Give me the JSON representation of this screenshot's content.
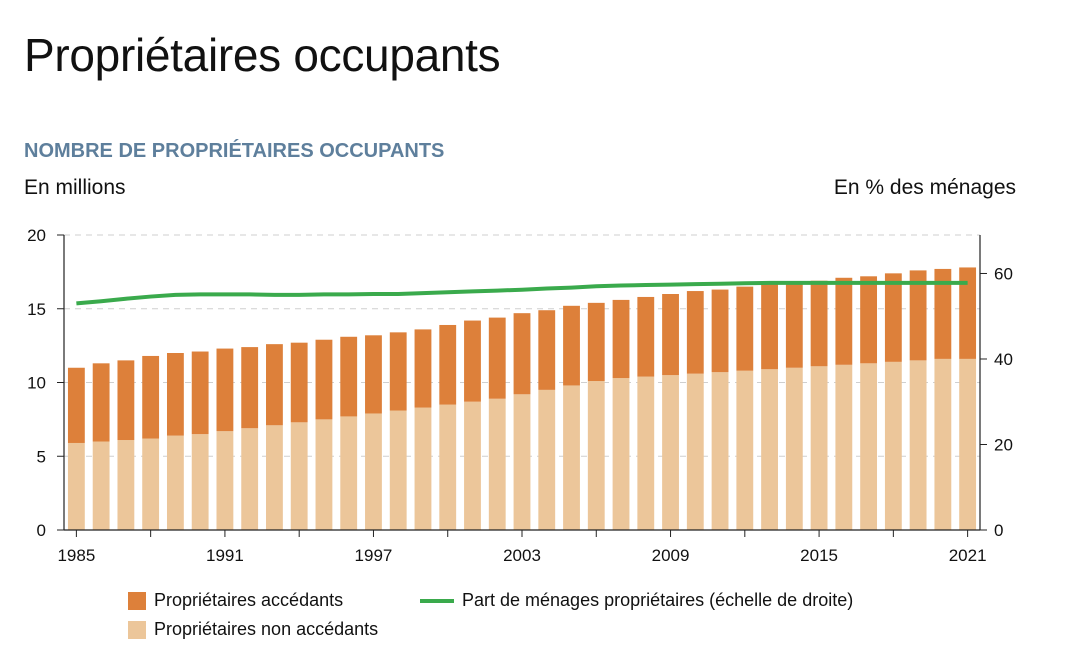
{
  "title": "Propriétaires occupants",
  "subtitle": "NOMBRE DE PROPRIÉTAIRES OCCUPANTS",
  "unit_left": "En millions",
  "unit_right": "En % des ménages",
  "legend": {
    "accedants": "Propriétaires accédants",
    "non_accedants": "Propriétaires non accédants",
    "part": "Part de ménages propriétaires (échelle de droite)"
  },
  "colors": {
    "accedants": "#dd803a",
    "non_accedants": "#ecc69a",
    "part": "#3aaa4c",
    "subtitle": "#5e7f9c"
  },
  "chart_data": {
    "type": "bar",
    "stacked": true,
    "x": [
      1985,
      1986,
      1987,
      1988,
      1989,
      1990,
      1991,
      1992,
      1993,
      1994,
      1995,
      1996,
      1997,
      1998,
      1999,
      2000,
      2001,
      2002,
      2003,
      2004,
      2005,
      2006,
      2007,
      2008,
      2009,
      2010,
      2011,
      2012,
      2013,
      2014,
      2015,
      2016,
      2017,
      2018,
      2019,
      2020,
      2021
    ],
    "x_tick_labels": [
      "1985",
      "1991",
      "1997",
      "2003",
      "2009",
      "2015",
      "2021"
    ],
    "y_left_ticks": [
      0,
      5,
      10,
      15,
      20
    ],
    "y_left_lim": [
      0,
      20
    ],
    "y_right_ticks": [
      0,
      20,
      40,
      60
    ],
    "y_right_lim": [
      0,
      69
    ],
    "series": [
      {
        "name": "Propriétaires non accédants",
        "axis": "left",
        "values": [
          5.9,
          6.0,
          6.1,
          6.2,
          6.4,
          6.5,
          6.7,
          6.9,
          7.1,
          7.3,
          7.5,
          7.7,
          7.9,
          8.1,
          8.3,
          8.5,
          8.7,
          8.9,
          9.2,
          9.5,
          9.8,
          10.1,
          10.3,
          10.4,
          10.5,
          10.6,
          10.7,
          10.8,
          10.9,
          11.0,
          11.1,
          11.2,
          11.3,
          11.4,
          11.5,
          11.6,
          11.6
        ]
      },
      {
        "name": "Propriétaires accédants",
        "axis": "left",
        "values": [
          5.1,
          5.3,
          5.4,
          5.6,
          5.6,
          5.6,
          5.6,
          5.5,
          5.5,
          5.4,
          5.4,
          5.4,
          5.3,
          5.3,
          5.3,
          5.4,
          5.5,
          5.5,
          5.5,
          5.4,
          5.4,
          5.3,
          5.3,
          5.4,
          5.5,
          5.6,
          5.6,
          5.7,
          5.8,
          5.8,
          5.8,
          5.9,
          5.9,
          6.0,
          6.1,
          6.1,
          6.2
        ]
      },
      {
        "name": "Part de ménages propriétaires (échelle de droite)",
        "axis": "right",
        "type": "line",
        "values": [
          53.0,
          53.5,
          54.1,
          54.6,
          55.0,
          55.1,
          55.1,
          55.1,
          55.0,
          55.0,
          55.1,
          55.1,
          55.2,
          55.2,
          55.4,
          55.6,
          55.8,
          56.0,
          56.2,
          56.5,
          56.7,
          57.0,
          57.2,
          57.3,
          57.4,
          57.5,
          57.6,
          57.7,
          57.8,
          57.8,
          57.8,
          57.8,
          57.8,
          57.8,
          57.8,
          57.8,
          57.8
        ]
      }
    ],
    "grid": "horizontal dashed",
    "legend_position": "bottom"
  }
}
